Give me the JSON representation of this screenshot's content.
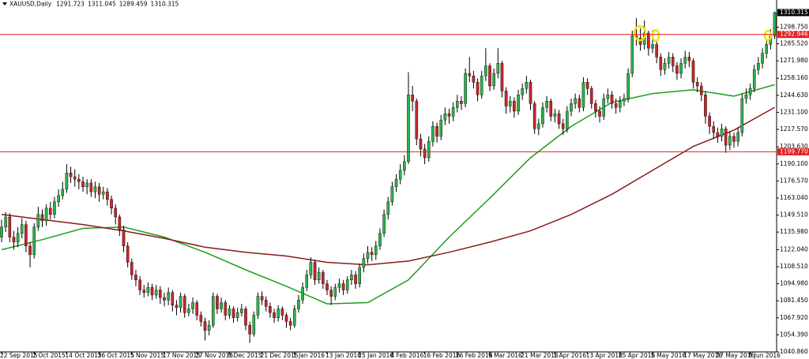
{
  "chart_data": {
    "type": "candlestick",
    "title": "XAUUSD,Daily",
    "categories": [
      "22 Sep 2015",
      null,
      null,
      null,
      null,
      null,
      null,
      null,
      "2 Oct 2015",
      null,
      null,
      null,
      null,
      null,
      null,
      null,
      "14 Oct 2015",
      null,
      null,
      null,
      null,
      null,
      null,
      null,
      "26 Oct 2015",
      null,
      null,
      null,
      null,
      null,
      null,
      null,
      "5 Nov 2015",
      null,
      null,
      null,
      null,
      null,
      null,
      null,
      "17 Nov 2015",
      null,
      null,
      null,
      null,
      null,
      null,
      null,
      "27 Nov 2015",
      null,
      null,
      null,
      null,
      null,
      null,
      null,
      "9 Dec 2015",
      null,
      null,
      null,
      null,
      null,
      null,
      null,
      "21 Dec 2015",
      null,
      null,
      null,
      null,
      null,
      null,
      null,
      "1 Jan 2016",
      null,
      null,
      null,
      null,
      null,
      null,
      null,
      "13 Jan 2016",
      null,
      null,
      null,
      null,
      null,
      null,
      null,
      "25 Jan 2016",
      null,
      null,
      null,
      null,
      null,
      null,
      null,
      "4 Feb 2016",
      null,
      null,
      null,
      null,
      null,
      null,
      null,
      "16 Feb 2016",
      null,
      null,
      null,
      null,
      null,
      null,
      null,
      "26 Feb 2016",
      null,
      null,
      null,
      null,
      null,
      null,
      null,
      "9 Mar 2016",
      null,
      null,
      null,
      null,
      null,
      null,
      null,
      "21 Mar 2016",
      null,
      null,
      null,
      null,
      null,
      null,
      null,
      "1 Apr 2016",
      null,
      null,
      null,
      null,
      null,
      null,
      null,
      "13 Apr 2016",
      null,
      null,
      null,
      null,
      null,
      null,
      null,
      "25 Apr 2016",
      null,
      null,
      null,
      null,
      null,
      null,
      null,
      "5 May 2016",
      null,
      null,
      null,
      null,
      null,
      null,
      null,
      "17 May 2016",
      null,
      null,
      null,
      null,
      null,
      null,
      null,
      "27 May 2016",
      null,
      null,
      null,
      null,
      null,
      null,
      null,
      "8 Jun 2016",
      null,
      null,
      null,
      null,
      null,
      null
    ],
    "open": [
      1132,
      1140,
      1148,
      1132,
      1128,
      1135,
      1142,
      1125,
      1118,
      1140,
      1150,
      1145,
      1155,
      1150,
      1160,
      1165,
      1170,
      1183,
      1180,
      1178,
      1176,
      1172,
      1175,
      1168,
      1172,
      1166,
      1168,
      1162,
      1155,
      1148,
      1138,
      1125,
      1112,
      1102,
      1098,
      1090,
      1088,
      1092,
      1086,
      1090,
      1084,
      1082,
      1088,
      1078,
      1076,
      1085,
      1072,
      1075,
      1080,
      1070,
      1065,
      1058,
      1062,
      1085,
      1075,
      1080,
      1070,
      1075,
      1068,
      1072,
      1075,
      1062,
      1055,
      1070,
      1085,
      1082,
      1077,
      1072,
      1068,
      1075,
      1070,
      1065,
      1062,
      1075,
      1082,
      1092,
      1102,
      1112,
      1098,
      1104,
      1095,
      1090,
      1085,
      1092,
      1095,
      1090,
      1098,
      1102,
      1095,
      1108,
      1115,
      1120,
      1118,
      1125,
      1135,
      1150,
      1160,
      1172,
      1178,
      1185,
      1192,
      1245,
      1240,
      1210,
      1202,
      1195,
      1208,
      1220,
      1212,
      1225,
      1230,
      1228,
      1235,
      1240,
      1238,
      1262,
      1260,
      1255,
      1245,
      1260,
      1268,
      1252,
      1262,
      1270,
      1248,
      1236,
      1240,
      1232,
      1245,
      1250,
      1255,
      1238,
      1218,
      1222,
      1235,
      1240,
      1228,
      1230,
      1222,
      1218,
      1232,
      1238,
      1242,
      1235,
      1255,
      1250,
      1238,
      1232,
      1228,
      1242,
      1245,
      1238,
      1235,
      1240,
      1242,
      1262,
      1292,
      1290,
      1285,
      1294,
      1282,
      1285,
      1275,
      1265,
      1270,
      1275,
      1268,
      1262,
      1270,
      1275,
      1272,
      1255,
      1252,
      1245,
      1228,
      1220,
      1215,
      1212,
      1218,
      1205,
      1212,
      1208,
      1215,
      1242,
      1245,
      1250,
      1265,
      1270,
      1278,
      1285,
      1291.723
    ],
    "high": [
      1146,
      1152,
      1151,
      1137,
      1140,
      1147,
      1145,
      1128,
      1143,
      1156,
      1154,
      1158,
      1160,
      1164,
      1170,
      1176,
      1190,
      1188,
      1186,
      1182,
      1180,
      1178,
      1178,
      1176,
      1175,
      1172,
      1171,
      1165,
      1158,
      1150,
      1141,
      1128,
      1115,
      1106,
      1101,
      1094,
      1096,
      1095,
      1094,
      1093,
      1088,
      1092,
      1090,
      1082,
      1088,
      1087,
      1079,
      1084,
      1082,
      1073,
      1068,
      1066,
      1088,
      1087,
      1084,
      1082,
      1078,
      1077,
      1076,
      1079,
      1077,
      1065,
      1073,
      1088,
      1089,
      1085,
      1080,
      1075,
      1078,
      1077,
      1072,
      1068,
      1078,
      1086,
      1096,
      1106,
      1116,
      1114,
      1108,
      1106,
      1098,
      1093,
      1095,
      1099,
      1098,
      1101,
      1106,
      1105,
      1111,
      1119,
      1125,
      1124,
      1129,
      1139,
      1154,
      1164,
      1176,
      1182,
      1190,
      1197,
      1263,
      1252,
      1242,
      1214,
      1206,
      1212,
      1224,
      1223,
      1229,
      1235,
      1234,
      1239,
      1245,
      1244,
      1266,
      1275,
      1264,
      1258,
      1264,
      1282,
      1270,
      1266,
      1282,
      1272,
      1251,
      1244,
      1243,
      1249,
      1254,
      1260,
      1257,
      1240,
      1226,
      1239,
      1244,
      1242,
      1234,
      1233,
      1226,
      1236,
      1242,
      1246,
      1245,
      1259,
      1258,
      1252,
      1241,
      1236,
      1246,
      1250,
      1248,
      1242,
      1244,
      1246,
      1266,
      1296,
      1306,
      1298,
      1304,
      1296,
      1296,
      1288,
      1278,
      1274,
      1279,
      1278,
      1271,
      1274,
      1280,
      1279,
      1274,
      1259,
      1255,
      1248,
      1231,
      1224,
      1219,
      1222,
      1220,
      1216,
      1215,
      1219,
      1246,
      1250,
      1254,
      1269,
      1275,
      1282,
      1289,
      1297,
      1311.045
    ],
    "low": [
      1128,
      1136,
      1128,
      1122,
      1124,
      1131,
      1120,
      1108,
      1115,
      1137,
      1140,
      1141,
      1146,
      1147,
      1156,
      1162,
      1167,
      1175,
      1172,
      1170,
      1168,
      1166,
      1164,
      1163,
      1160,
      1162,
      1157,
      1150,
      1142,
      1133,
      1120,
      1108,
      1098,
      1093,
      1086,
      1084,
      1085,
      1082,
      1083,
      1079,
      1077,
      1078,
      1073,
      1070,
      1072,
      1068,
      1069,
      1071,
      1066,
      1061,
      1050,
      1054,
      1060,
      1071,
      1072,
      1066,
      1067,
      1064,
      1065,
      1069,
      1058,
      1048,
      1053,
      1067,
      1078,
      1073,
      1068,
      1064,
      1065,
      1066,
      1060,
      1058,
      1060,
      1072,
      1079,
      1089,
      1099,
      1094,
      1095,
      1091,
      1086,
      1078,
      1082,
      1088,
      1086,
      1087,
      1094,
      1091,
      1092,
      1104,
      1111,
      1113,
      1114,
      1122,
      1132,
      1146,
      1157,
      1168,
      1174,
      1181,
      1190,
      1232,
      1205,
      1196,
      1190,
      1192,
      1204,
      1207,
      1209,
      1221,
      1222,
      1224,
      1231,
      1233,
      1235,
      1255,
      1250,
      1240,
      1242,
      1256,
      1248,
      1249,
      1258,
      1243,
      1230,
      1231,
      1227,
      1229,
      1241,
      1246,
      1233,
      1214,
      1213,
      1219,
      1231,
      1224,
      1223,
      1218,
      1213,
      1215,
      1228,
      1234,
      1231,
      1232,
      1245,
      1234,
      1227,
      1223,
      1225,
      1238,
      1234,
      1230,
      1231,
      1236,
      1239,
      1259,
      1284,
      1280,
      1281,
      1276,
      1278,
      1270,
      1260,
      1261,
      1266,
      1263,
      1257,
      1258,
      1266,
      1267,
      1250,
      1247,
      1240,
      1222,
      1214,
      1210,
      1207,
      1208,
      1199,
      1201,
      1203,
      1204,
      1212,
      1238,
      1241,
      1247,
      1261,
      1266,
      1274,
      1281,
      1289.459
    ],
    "close": [
      1140,
      1148,
      1132,
      1128,
      1135,
      1142,
      1125,
      1118,
      1140,
      1150,
      1145,
      1155,
      1150,
      1160,
      1165,
      1170,
      1183,
      1180,
      1178,
      1176,
      1172,
      1175,
      1168,
      1172,
      1166,
      1168,
      1162,
      1155,
      1148,
      1138,
      1125,
      1112,
      1102,
      1098,
      1090,
      1088,
      1092,
      1086,
      1090,
      1084,
      1082,
      1088,
      1078,
      1076,
      1085,
      1072,
      1075,
      1080,
      1070,
      1065,
      1058,
      1062,
      1085,
      1075,
      1080,
      1070,
      1075,
      1068,
      1072,
      1075,
      1062,
      1055,
      1070,
      1085,
      1082,
      1077,
      1072,
      1068,
      1075,
      1070,
      1065,
      1062,
      1075,
      1082,
      1092,
      1102,
      1112,
      1098,
      1104,
      1095,
      1090,
      1085,
      1092,
      1095,
      1090,
      1098,
      1102,
      1095,
      1108,
      1115,
      1120,
      1118,
      1125,
      1135,
      1150,
      1160,
      1172,
      1178,
      1185,
      1192,
      1245,
      1240,
      1210,
      1202,
      1195,
      1208,
      1220,
      1212,
      1225,
      1230,
      1228,
      1235,
      1240,
      1238,
      1262,
      1260,
      1255,
      1245,
      1260,
      1268,
      1252,
      1262,
      1270,
      1248,
      1236,
      1240,
      1232,
      1245,
      1250,
      1255,
      1238,
      1218,
      1222,
      1235,
      1240,
      1228,
      1230,
      1222,
      1218,
      1232,
      1238,
      1242,
      1235,
      1255,
      1250,
      1238,
      1232,
      1228,
      1242,
      1245,
      1238,
      1235,
      1240,
      1242,
      1262,
      1292,
      1290,
      1285,
      1294,
      1282,
      1285,
      1275,
      1265,
      1270,
      1275,
      1268,
      1262,
      1270,
      1275,
      1272,
      1255,
      1252,
      1245,
      1228,
      1220,
      1215,
      1212,
      1218,
      1205,
      1212,
      1208,
      1215,
      1242,
      1245,
      1250,
      1265,
      1270,
      1278,
      1285,
      1292,
      1310.315
    ],
    "up_color": "#2db34a",
    "down_color": "#c8262a",
    "lines": [
      {
        "color": "#1f9e1f",
        "x": [
          0,
          10,
          20,
          30,
          40,
          50,
          60,
          70,
          80,
          90,
          100,
          110,
          120,
          130,
          140,
          150,
          160,
          170,
          180,
          190
        ],
        "values": [
          1122,
          1130,
          1139,
          1140,
          1132,
          1120,
          1106,
          1093,
          1079,
          1080,
          1098,
          1132,
          1163,
          1195,
          1220,
          1239,
          1246,
          1249,
          1244,
          1253
        ]
      },
      {
        "color": "#8b1a1a",
        "x": [
          0,
          10,
          20,
          30,
          40,
          50,
          60,
          70,
          80,
          90,
          100,
          110,
          120,
          130,
          140,
          150,
          160,
          170,
          180,
          190
        ],
        "values": [
          1150,
          1146,
          1142,
          1137,
          1131,
          1124,
          1120,
          1117,
          1112,
          1110,
          1113,
          1120,
          1128,
          1137,
          1150,
          1166,
          1185,
          1204,
          1217,
          1235
        ]
      }
    ],
    "hlines": [
      1292.946,
      {
        "value": 1199.77,
        "label": "1199.770"
      }
    ],
    "hline_color": "#e02020",
    "ylim": [
      1040.86,
      1320.3
    ],
    "yticks": [
      {
        "value": 1298.75,
        "label": "1298.750"
      },
      {
        "value": 1285.52,
        "label": "1285.520"
      },
      {
        "value": 1271.98,
        "label": "1271.980"
      },
      {
        "value": 1258.16,
        "label": "1258.160"
      },
      {
        "value": 1244.63,
        "label": "1244.630"
      },
      {
        "value": 1231.1,
        "label": "1231.100"
      },
      {
        "value": 1217.57,
        "label": "1217.570"
      },
      {
        "value": 1203.63,
        "label": "1203.630"
      },
      {
        "value": 1190.1,
        "label": "1190.100"
      },
      {
        "value": 1176.57,
        "label": "1176.570"
      },
      {
        "value": 1163.04,
        "label": "1163.040"
      },
      {
        "value": 1149.51,
        "label": "1149.510"
      },
      {
        "value": 1135.98,
        "label": "1135.980"
      },
      {
        "value": 1122.04,
        "label": "1122.040"
      },
      {
        "value": 1108.51,
        "label": "1108.510"
      },
      {
        "value": 1094.98,
        "label": "1094.980"
      },
      {
        "value": 1081.45,
        "label": "1081.450"
      },
      {
        "value": 1067.92,
        "label": "1067.920"
      },
      {
        "value": 1054.39,
        "label": "1054.390"
      },
      {
        "value": 1040.86,
        "label": "1040.860"
      }
    ]
  }
}
